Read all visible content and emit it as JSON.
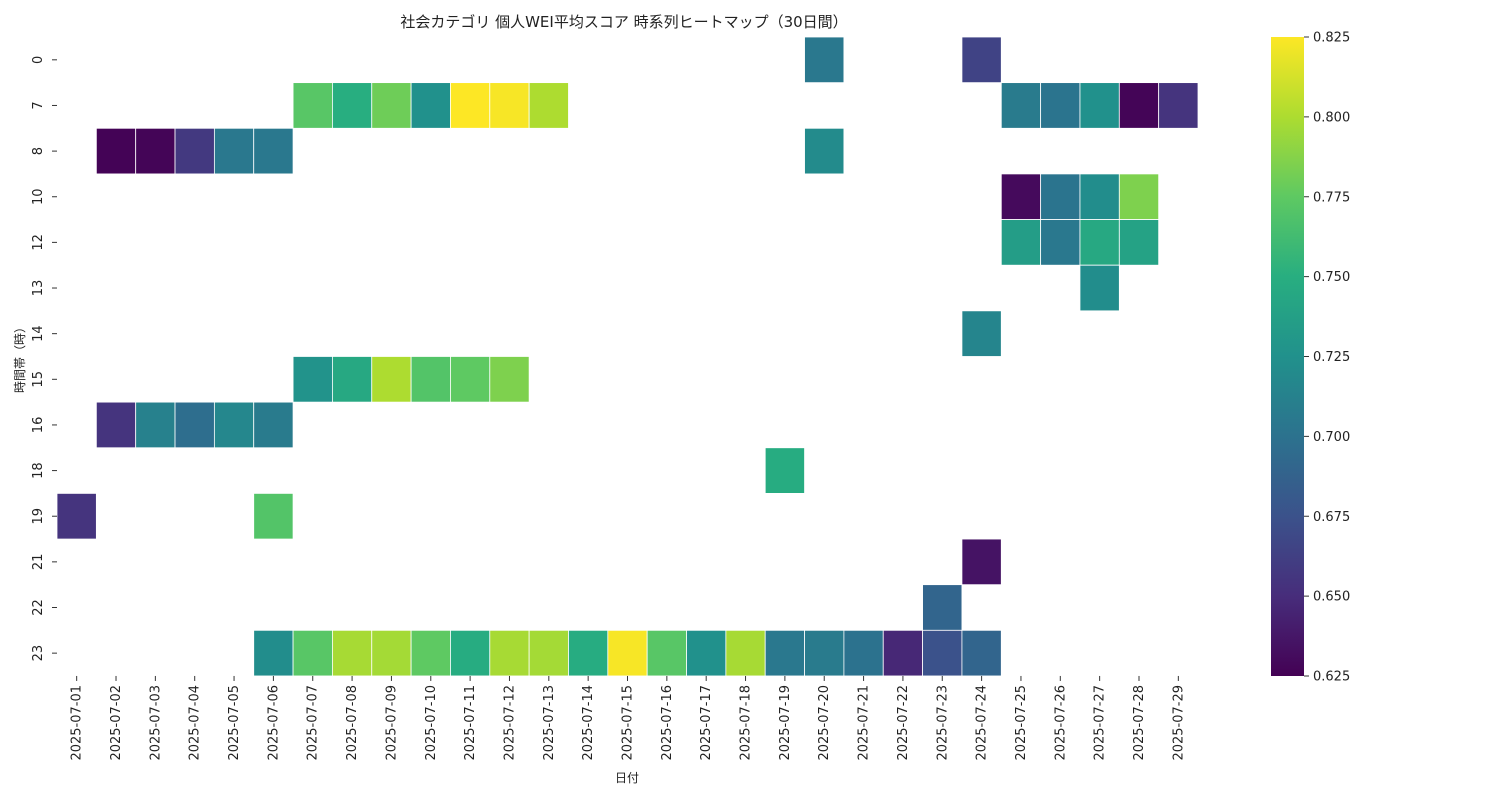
{
  "chart_data": {
    "type": "heatmap",
    "title": "社会カテゴリ 個人WEI平均スコア 時系列ヒートマップ（30日間）",
    "xlabel": "日付",
    "ylabel": "時間帯（時）",
    "x_categories": [
      "2025-07-01",
      "2025-07-02",
      "2025-07-03",
      "2025-07-04",
      "2025-07-05",
      "2025-07-06",
      "2025-07-07",
      "2025-07-08",
      "2025-07-09",
      "2025-07-10",
      "2025-07-11",
      "2025-07-12",
      "2025-07-13",
      "2025-07-14",
      "2025-07-15",
      "2025-07-16",
      "2025-07-17",
      "2025-07-18",
      "2025-07-19",
      "2025-07-20",
      "2025-07-21",
      "2025-07-22",
      "2025-07-23",
      "2025-07-24",
      "2025-07-25",
      "2025-07-26",
      "2025-07-27",
      "2025-07-28",
      "2025-07-29"
    ],
    "y_categories": [
      "0",
      "7",
      "8",
      "10",
      "12",
      "13",
      "14",
      "15",
      "16",
      "18",
      "19",
      "21",
      "22",
      "23"
    ],
    "colorscale": "viridis",
    "vmin": 0.625,
    "vmax": 0.825,
    "colorbar_ticks": [
      "0.625",
      "0.650",
      "0.675",
      "0.700",
      "0.725",
      "0.750",
      "0.775",
      "0.800",
      "0.825"
    ],
    "grid": false,
    "legend": "colorbar-right",
    "cells": [
      {
        "x": "2025-07-20",
        "y": "0",
        "value": 0.705
      },
      {
        "x": "2025-07-24",
        "y": "0",
        "value": 0.665
      },
      {
        "x": "2025-07-07",
        "y": "7",
        "value": 0.772
      },
      {
        "x": "2025-07-08",
        "y": "7",
        "value": 0.75
      },
      {
        "x": "2025-07-09",
        "y": "7",
        "value": 0.78
      },
      {
        "x": "2025-07-10",
        "y": "7",
        "value": 0.725
      },
      {
        "x": "2025-07-11",
        "y": "7",
        "value": 0.825
      },
      {
        "x": "2025-07-12",
        "y": "7",
        "value": 0.823
      },
      {
        "x": "2025-07-13",
        "y": "7",
        "value": 0.8
      },
      {
        "x": "2025-07-25",
        "y": "7",
        "value": 0.707
      },
      {
        "x": "2025-07-26",
        "y": "7",
        "value": 0.702
      },
      {
        "x": "2025-07-27",
        "y": "7",
        "value": 0.725
      },
      {
        "x": "2025-07-28",
        "y": "7",
        "value": 0.627
      },
      {
        "x": "2025-07-29",
        "y": "7",
        "value": 0.655
      },
      {
        "x": "2025-07-02",
        "y": "8",
        "value": 0.626
      },
      {
        "x": "2025-07-03",
        "y": "8",
        "value": 0.627
      },
      {
        "x": "2025-07-04",
        "y": "8",
        "value": 0.658
      },
      {
        "x": "2025-07-05",
        "y": "8",
        "value": 0.705
      },
      {
        "x": "2025-07-06",
        "y": "8",
        "value": 0.705
      },
      {
        "x": "2025-07-20",
        "y": "8",
        "value": 0.72
      },
      {
        "x": "2025-07-25",
        "y": "10",
        "value": 0.63
      },
      {
        "x": "2025-07-26",
        "y": "10",
        "value": 0.702
      },
      {
        "x": "2025-07-27",
        "y": "10",
        "value": 0.722
      },
      {
        "x": "2025-07-28",
        "y": "10",
        "value": 0.785
      },
      {
        "x": "2025-07-25",
        "y": "12",
        "value": 0.735
      },
      {
        "x": "2025-07-26",
        "y": "12",
        "value": 0.705
      },
      {
        "x": "2025-07-27",
        "y": "12",
        "value": 0.745
      },
      {
        "x": "2025-07-28",
        "y": "12",
        "value": 0.74
      },
      {
        "x": "2025-07-27",
        "y": "13",
        "value": 0.722
      },
      {
        "x": "2025-07-24",
        "y": "14",
        "value": 0.715
      },
      {
        "x": "2025-07-07",
        "y": "15",
        "value": 0.727
      },
      {
        "x": "2025-07-08",
        "y": "15",
        "value": 0.745
      },
      {
        "x": "2025-07-09",
        "y": "15",
        "value": 0.8
      },
      {
        "x": "2025-07-10",
        "y": "15",
        "value": 0.77
      },
      {
        "x": "2025-07-11",
        "y": "15",
        "value": 0.775
      },
      {
        "x": "2025-07-12",
        "y": "15",
        "value": 0.785
      },
      {
        "x": "2025-07-02",
        "y": "16",
        "value": 0.655
      },
      {
        "x": "2025-07-03",
        "y": "16",
        "value": 0.712
      },
      {
        "x": "2025-07-04",
        "y": "16",
        "value": 0.697
      },
      {
        "x": "2025-07-05",
        "y": "16",
        "value": 0.717
      },
      {
        "x": "2025-07-06",
        "y": "16",
        "value": 0.707
      },
      {
        "x": "2025-07-19",
        "y": "18",
        "value": 0.748
      },
      {
        "x": "2025-07-01",
        "y": "19",
        "value": 0.655
      },
      {
        "x": "2025-07-06",
        "y": "19",
        "value": 0.77
      },
      {
        "x": "2025-07-24",
        "y": "21",
        "value": 0.635
      },
      {
        "x": "2025-07-23",
        "y": "22",
        "value": 0.69
      },
      {
        "x": "2025-07-06",
        "y": "23",
        "value": 0.722
      },
      {
        "x": "2025-07-07",
        "y": "23",
        "value": 0.772
      },
      {
        "x": "2025-07-08",
        "y": "23",
        "value": 0.798
      },
      {
        "x": "2025-07-09",
        "y": "23",
        "value": 0.797
      },
      {
        "x": "2025-07-10",
        "y": "23",
        "value": 0.775
      },
      {
        "x": "2025-07-11",
        "y": "23",
        "value": 0.748
      },
      {
        "x": "2025-07-12",
        "y": "23",
        "value": 0.798
      },
      {
        "x": "2025-07-13",
        "y": "23",
        "value": 0.797
      },
      {
        "x": "2025-07-14",
        "y": "23",
        "value": 0.748
      },
      {
        "x": "2025-07-15",
        "y": "23",
        "value": 0.823
      },
      {
        "x": "2025-07-16",
        "y": "23",
        "value": 0.772
      },
      {
        "x": "2025-07-17",
        "y": "23",
        "value": 0.725
      },
      {
        "x": "2025-07-18",
        "y": "23",
        "value": 0.798
      },
      {
        "x": "2025-07-19",
        "y": "23",
        "value": 0.705
      },
      {
        "x": "2025-07-20",
        "y": "23",
        "value": 0.707
      },
      {
        "x": "2025-07-21",
        "y": "23",
        "value": 0.7
      },
      {
        "x": "2025-07-22",
        "y": "23",
        "value": 0.647
      },
      {
        "x": "2025-07-23",
        "y": "23",
        "value": 0.675
      },
      {
        "x": "2025-07-24",
        "y": "23",
        "value": 0.69
      }
    ]
  }
}
